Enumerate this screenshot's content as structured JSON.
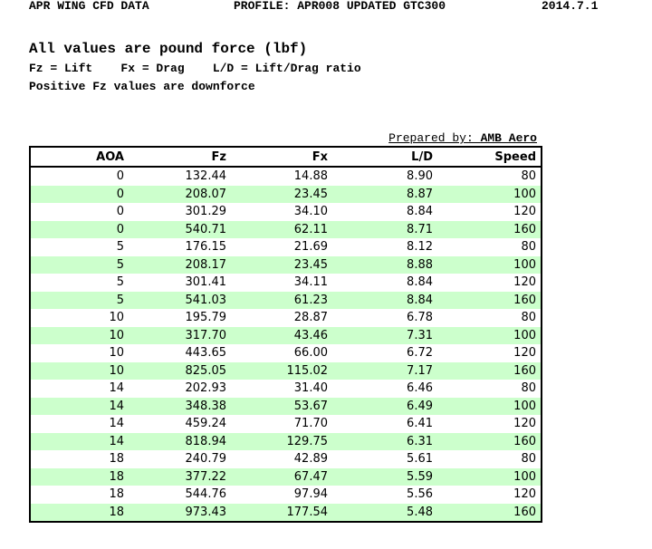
{
  "page": {
    "title_line": {
      "title": "APR WING CFD DATA",
      "profile": "PROFILE: APR008 UPDATED GTC300",
      "date": "2014.7.1"
    },
    "subtitle": "All values are pound force (lbf)",
    "legend": "Fz = Lift    Fx = Drag    L/D = Lift/Drag ratio",
    "note": "Positive Fz values are downforce",
    "prepared_by": {
      "label": "Prepared by: ",
      "name": "AMB Aero"
    }
  },
  "table": {
    "columns": [
      "AOA",
      "Fz",
      "Fx",
      "L/D",
      "Speed"
    ],
    "column_keys": [
      "aoa",
      "fz",
      "fx",
      "ld",
      "speed"
    ],
    "rows": [
      [
        "0",
        "132.44",
        "14.88",
        "8.90",
        "80"
      ],
      [
        "0",
        "208.07",
        "23.45",
        "8.87",
        "100"
      ],
      [
        "0",
        "301.29",
        "34.10",
        "8.84",
        "120"
      ],
      [
        "0",
        "540.71",
        "62.11",
        "8.71",
        "160"
      ],
      [
        "5",
        "176.15",
        "21.69",
        "8.12",
        "80"
      ],
      [
        "5",
        "208.17",
        "23.45",
        "8.88",
        "100"
      ],
      [
        "5",
        "301.41",
        "34.11",
        "8.84",
        "120"
      ],
      [
        "5",
        "541.03",
        "61.23",
        "8.84",
        "160"
      ],
      [
        "10",
        "195.79",
        "28.87",
        "6.78",
        "80"
      ],
      [
        "10",
        "317.70",
        "43.46",
        "7.31",
        "100"
      ],
      [
        "10",
        "443.65",
        "66.00",
        "6.72",
        "120"
      ],
      [
        "10",
        "825.05",
        "115.02",
        "7.17",
        "160"
      ],
      [
        "14",
        "202.93",
        "31.40",
        "6.46",
        "80"
      ],
      [
        "14",
        "348.38",
        "53.67",
        "6.49",
        "100"
      ],
      [
        "14",
        "459.24",
        "71.70",
        "6.41",
        "120"
      ],
      [
        "14",
        "818.94",
        "129.75",
        "6.31",
        "160"
      ],
      [
        "18",
        "240.79",
        "42.89",
        "5.61",
        "80"
      ],
      [
        "18",
        "377.22",
        "67.47",
        "5.59",
        "100"
      ],
      [
        "18",
        "544.76",
        "97.94",
        "5.56",
        "120"
      ],
      [
        "18",
        "973.43",
        "177.54",
        "5.48",
        "160"
      ]
    ]
  },
  "colors": {
    "alt_row_background": "#ccffcc",
    "table_border": "#000000",
    "text": "#000000",
    "page_background": "#ffffff"
  }
}
